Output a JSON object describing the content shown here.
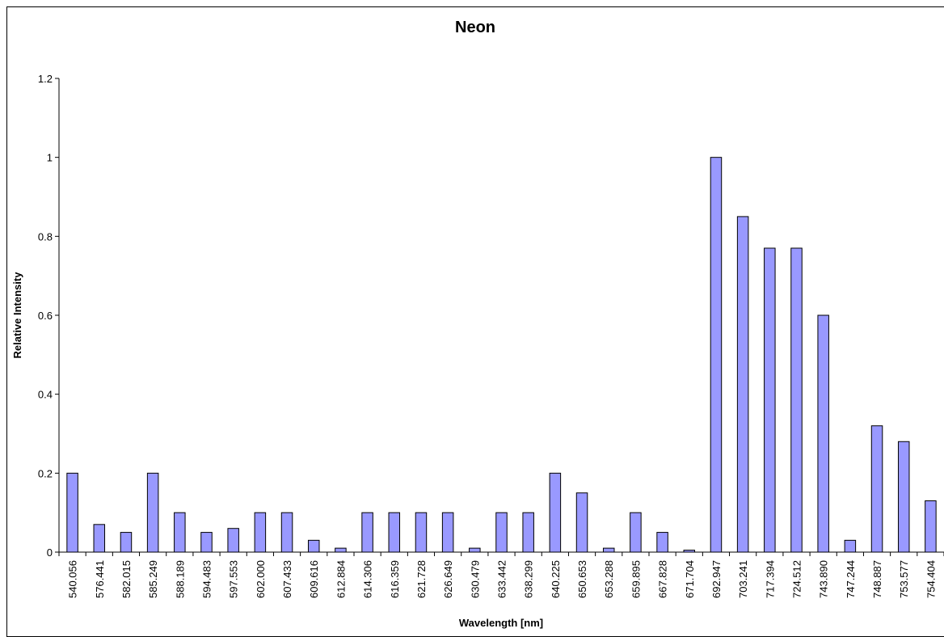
{
  "chart_data": {
    "type": "bar",
    "title": "Neon",
    "xlabel": "Wavelength [nm]",
    "ylabel": "Relative Intensity",
    "ylim": [
      0,
      1.2
    ],
    "yticks": [
      "0",
      "0.2",
      "0.4",
      "0.6",
      "0.8",
      "1",
      "1.2"
    ],
    "grid": false,
    "legend": "none",
    "bar_color": "#9999ff",
    "categories": [
      "540.056",
      "576.441",
      "582.015",
      "585.249",
      "588.189",
      "594.483",
      "597.553",
      "602.000",
      "607.433",
      "609.616",
      "612.884",
      "614.306",
      "616.359",
      "621.728",
      "626.649",
      "630.479",
      "633.442",
      "638.299",
      "640.225",
      "650.653",
      "653.288",
      "659.895",
      "667.828",
      "671.704",
      "692.947",
      "703.241",
      "717.394",
      "724.512",
      "743.890",
      "747.244",
      "748.887",
      "753.577",
      "754.404"
    ],
    "values": [
      0.2,
      0.07,
      0.05,
      0.2,
      0.1,
      0.05,
      0.06,
      0.1,
      0.1,
      0.03,
      0.01,
      0.1,
      0.1,
      0.1,
      0.1,
      0.01,
      0.1,
      0.1,
      0.2,
      0.15,
      0.01,
      0.1,
      0.05,
      0.005,
      1.0,
      0.85,
      0.77,
      0.77,
      0.6,
      0.03,
      0.32,
      0.28,
      0.13
    ]
  }
}
